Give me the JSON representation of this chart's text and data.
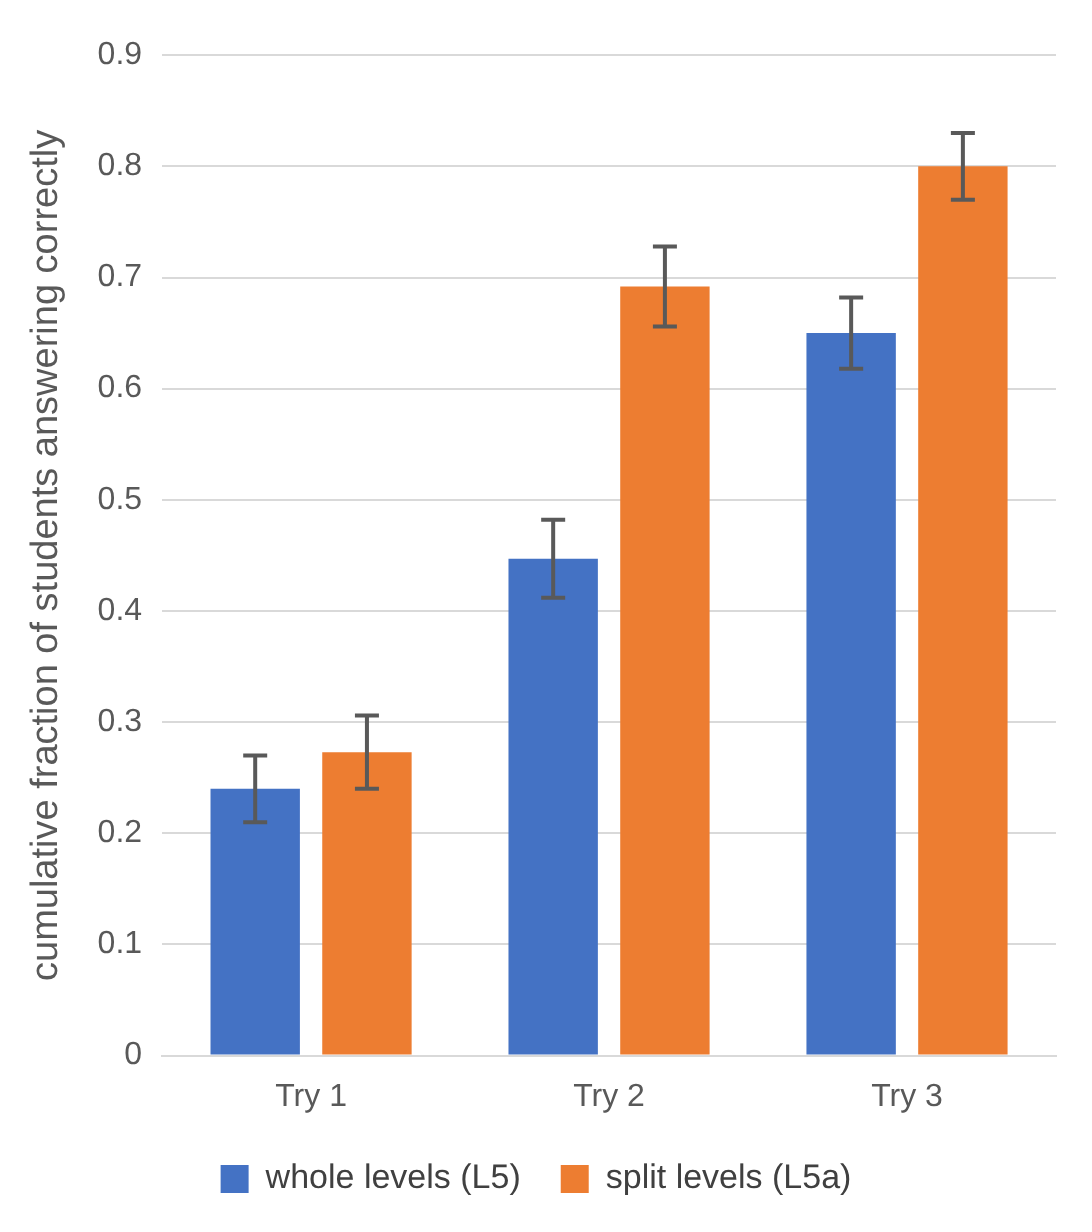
{
  "chart_data": {
    "type": "bar",
    "ylabel": "cumulative fraction of students answering correctly",
    "categories": [
      "Try 1",
      "Try 2",
      "Try 3"
    ],
    "series": [
      {
        "name": "whole levels (L5)",
        "color": "#4472c4",
        "values": [
          0.24,
          0.447,
          0.65
        ],
        "errors": [
          0.03,
          0.035,
          0.032
        ]
      },
      {
        "name": "split levels (L5a)",
        "color": "#ed7d31",
        "values": [
          0.273,
          0.692,
          0.8
        ],
        "errors": [
          0.033,
          0.036,
          0.03
        ]
      }
    ],
    "ylim": [
      0,
      0.9
    ],
    "yticks": [
      0,
      0.1,
      0.2,
      0.3,
      0.4,
      0.5,
      0.6,
      0.7,
      0.8,
      0.9
    ],
    "grid": "y",
    "legend": "bottom"
  }
}
